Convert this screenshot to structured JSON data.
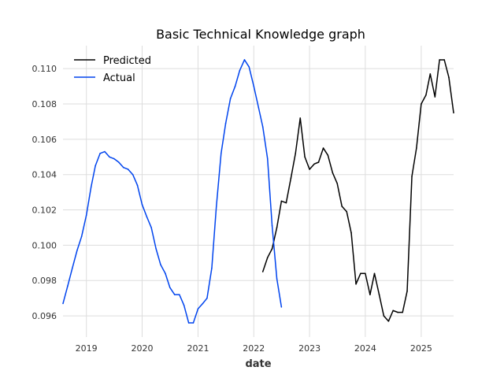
{
  "chart_data": {
    "type": "line",
    "title": "Basic Technical Knowledge graph",
    "xlabel": "date",
    "ylabel": "",
    "x_axis_type": "date",
    "xlim": [
      "2018-08-01",
      "2025-08-01"
    ],
    "ylim": [
      0.0948,
      0.1113
    ],
    "x_ticks": [
      "2019",
      "2020",
      "2021",
      "2022",
      "2023",
      "2024",
      "2025"
    ],
    "y_ticks": [
      "0.096",
      "0.098",
      "0.100",
      "0.102",
      "0.104",
      "0.106",
      "0.108",
      "0.110"
    ],
    "grid": true,
    "legend_position": "top-left",
    "series": [
      {
        "name": "Predicted",
        "color": "#000000",
        "points": [
          [
            "2022-03-01",
            0.0985
          ],
          [
            "2022-04-01",
            0.0993
          ],
          [
            "2022-05-01",
            0.0998
          ],
          [
            "2022-06-01",
            0.101
          ],
          [
            "2022-07-01",
            0.1025
          ],
          [
            "2022-08-01",
            0.1024
          ],
          [
            "2022-09-01",
            0.1038
          ],
          [
            "2022-10-01",
            0.1052
          ],
          [
            "2022-11-01",
            0.1072
          ],
          [
            "2022-12-01",
            0.105
          ],
          [
            "2023-01-01",
            0.1043
          ],
          [
            "2023-02-01",
            0.1046
          ],
          [
            "2023-03-01",
            0.1047
          ],
          [
            "2023-04-01",
            0.1055
          ],
          [
            "2023-05-01",
            0.1051
          ],
          [
            "2023-06-01",
            0.1041
          ],
          [
            "2023-07-01",
            0.1035
          ],
          [
            "2023-08-01",
            0.1022
          ],
          [
            "2023-09-01",
            0.1019
          ],
          [
            "2023-10-01",
            0.1007
          ],
          [
            "2023-11-01",
            0.0978
          ],
          [
            "2023-12-01",
            0.0984
          ],
          [
            "2024-01-01",
            0.0984
          ],
          [
            "2024-02-01",
            0.0972
          ],
          [
            "2024-03-01",
            0.0984
          ],
          [
            "2024-04-01",
            0.0972
          ],
          [
            "2024-05-01",
            0.096
          ],
          [
            "2024-06-01",
            0.0957
          ],
          [
            "2024-07-01",
            0.0963
          ],
          [
            "2024-08-01",
            0.0962
          ],
          [
            "2024-09-01",
            0.0962
          ],
          [
            "2024-10-01",
            0.0974
          ],
          [
            "2024-11-01",
            0.1039
          ],
          [
            "2024-12-01",
            0.1055
          ],
          [
            "2025-01-01",
            0.108
          ],
          [
            "2025-02-01",
            0.1085
          ],
          [
            "2025-03-01",
            0.1097
          ],
          [
            "2025-04-01",
            0.1084
          ],
          [
            "2025-05-01",
            0.1105
          ],
          [
            "2025-06-01",
            0.1105
          ],
          [
            "2025-07-01",
            0.1095
          ],
          [
            "2025-08-01",
            0.1075
          ]
        ]
      },
      {
        "name": "Actual",
        "color": "#0044ee",
        "points": [
          [
            "2018-08-01",
            0.0967
          ],
          [
            "2018-09-01",
            0.0977
          ],
          [
            "2018-10-01",
            0.0987
          ],
          [
            "2018-11-01",
            0.0997
          ],
          [
            "2018-12-01",
            0.1005
          ],
          [
            "2019-01-01",
            0.1017
          ],
          [
            "2019-02-01",
            0.1033
          ],
          [
            "2019-03-01",
            0.1045
          ],
          [
            "2019-04-01",
            0.1052
          ],
          [
            "2019-05-01",
            0.1053
          ],
          [
            "2019-06-01",
            0.105
          ],
          [
            "2019-07-01",
            0.1049
          ],
          [
            "2019-08-01",
            0.1047
          ],
          [
            "2019-09-01",
            0.1044
          ],
          [
            "2019-10-01",
            0.1043
          ],
          [
            "2019-11-01",
            0.104
          ],
          [
            "2019-12-01",
            0.1034
          ],
          [
            "2020-01-01",
            0.1023
          ],
          [
            "2020-02-01",
            0.1016
          ],
          [
            "2020-03-01",
            0.101
          ],
          [
            "2020-04-01",
            0.0998
          ],
          [
            "2020-05-01",
            0.0989
          ],
          [
            "2020-06-01",
            0.0984
          ],
          [
            "2020-07-01",
            0.0976
          ],
          [
            "2020-08-01",
            0.0972
          ],
          [
            "2020-09-01",
            0.0972
          ],
          [
            "2020-10-01",
            0.0966
          ],
          [
            "2020-11-01",
            0.0956
          ],
          [
            "2020-12-01",
            0.0956
          ],
          [
            "2021-01-01",
            0.0964
          ],
          [
            "2021-02-01",
            0.0967
          ],
          [
            "2021-03-01",
            0.097
          ],
          [
            "2021-04-01",
            0.0987
          ],
          [
            "2021-05-01",
            0.1022
          ],
          [
            "2021-06-01",
            0.1052
          ],
          [
            "2021-07-01",
            0.1069
          ],
          [
            "2021-08-01",
            0.1083
          ],
          [
            "2021-09-01",
            0.109
          ],
          [
            "2021-10-01",
            0.1099
          ],
          [
            "2021-11-01",
            0.1105
          ],
          [
            "2021-12-01",
            0.1101
          ],
          [
            "2022-01-01",
            0.109
          ],
          [
            "2022-02-01",
            0.1078
          ],
          [
            "2022-03-01",
            0.1067
          ],
          [
            "2022-04-01",
            0.1049
          ],
          [
            "2022-05-01",
            0.1011
          ],
          [
            "2022-06-01",
            0.0981
          ],
          [
            "2022-07-01",
            0.0965
          ]
        ]
      }
    ]
  }
}
